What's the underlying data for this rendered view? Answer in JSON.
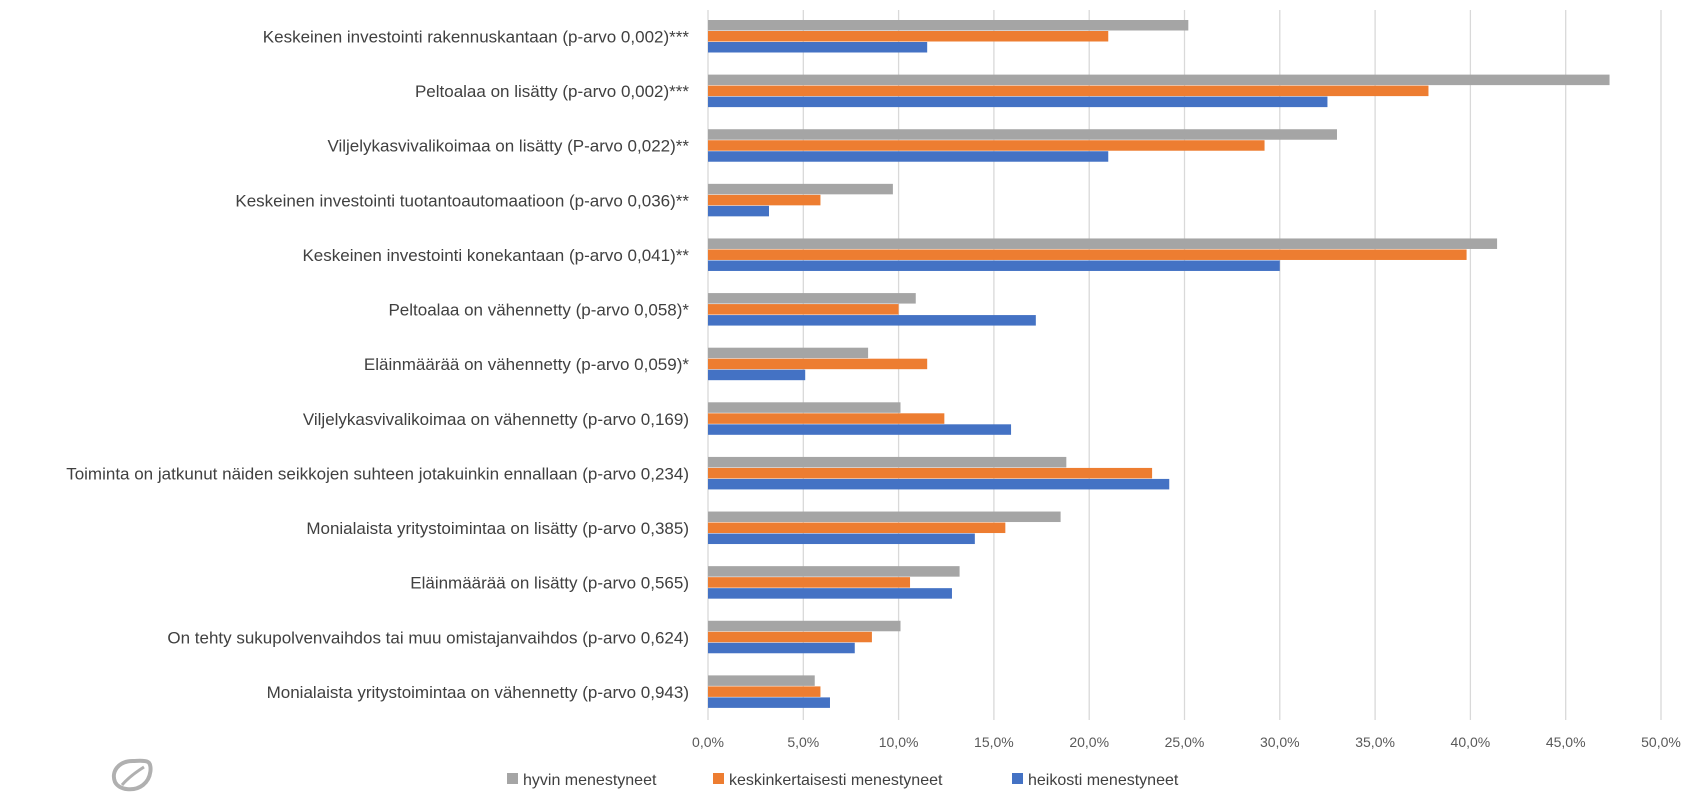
{
  "chart_data": {
    "type": "bar",
    "orientation": "horizontal",
    "title": "",
    "xlabel": "",
    "ylabel": "",
    "xlim": [
      0,
      50
    ],
    "x_ticks": [
      "0,0%",
      "5,0%",
      "10,0%",
      "15,0%",
      "20,0%",
      "25,0%",
      "30,0%",
      "35,0%",
      "40,0%",
      "45,0%",
      "50,0%"
    ],
    "grid": "vertical",
    "legend_position": "bottom",
    "categories": [
      "Keskeinen investointi rakennuskantaan (p-arvo 0,002)***",
      "Peltoalaa on lisätty (p-arvo 0,002)***",
      "Viljelykasvivalikoimaa on lisätty (P-arvo 0,022)**",
      "Keskeinen investointi tuotantoautomaatioon (p-arvo 0,036)**",
      "Keskeinen investointi konekantaan (p-arvo 0,041)**",
      "Peltoalaa on vähennetty (p-arvo 0,058)*",
      "Eläinmäärää on vähennetty (p-arvo 0,059)*",
      "Viljelykasvivalikoimaa on vähennetty (p-arvo 0,169)",
      "Toiminta on jatkunut näiden seikkojen suhteen jotakuinkin ennallaan (p-arvo 0,234)",
      "Monialaista yritystoimintaa on lisätty (p-arvo 0,385)",
      "Eläinmäärää on lisätty (p-arvo 0,565)",
      "On tehty sukupolvenvaihdos tai muu omistajanvaihdos (p-arvo 0,624)",
      "Monialaista yritystoimintaa on vähennetty (p-arvo 0,943)"
    ],
    "series": [
      {
        "name": "hyvin menestyneet",
        "color": "#a5a5a5",
        "values": [
          25.2,
          47.3,
          33.0,
          9.7,
          41.4,
          10.9,
          8.4,
          10.1,
          18.8,
          18.5,
          13.2,
          10.1,
          5.6
        ]
      },
      {
        "name": "keskinkertaisesti menestyneet",
        "color": "#ed7d31",
        "values": [
          21.0,
          37.8,
          29.2,
          5.9,
          39.8,
          10.0,
          11.5,
          12.4,
          23.3,
          15.6,
          10.6,
          8.6,
          5.9
        ]
      },
      {
        "name": "heikosti menestyneet",
        "color": "#4472c4",
        "values": [
          11.5,
          32.5,
          21.0,
          3.2,
          30.0,
          17.2,
          5.1,
          15.9,
          24.2,
          14.0,
          12.8,
          7.7,
          6.4
        ]
      }
    ]
  }
}
